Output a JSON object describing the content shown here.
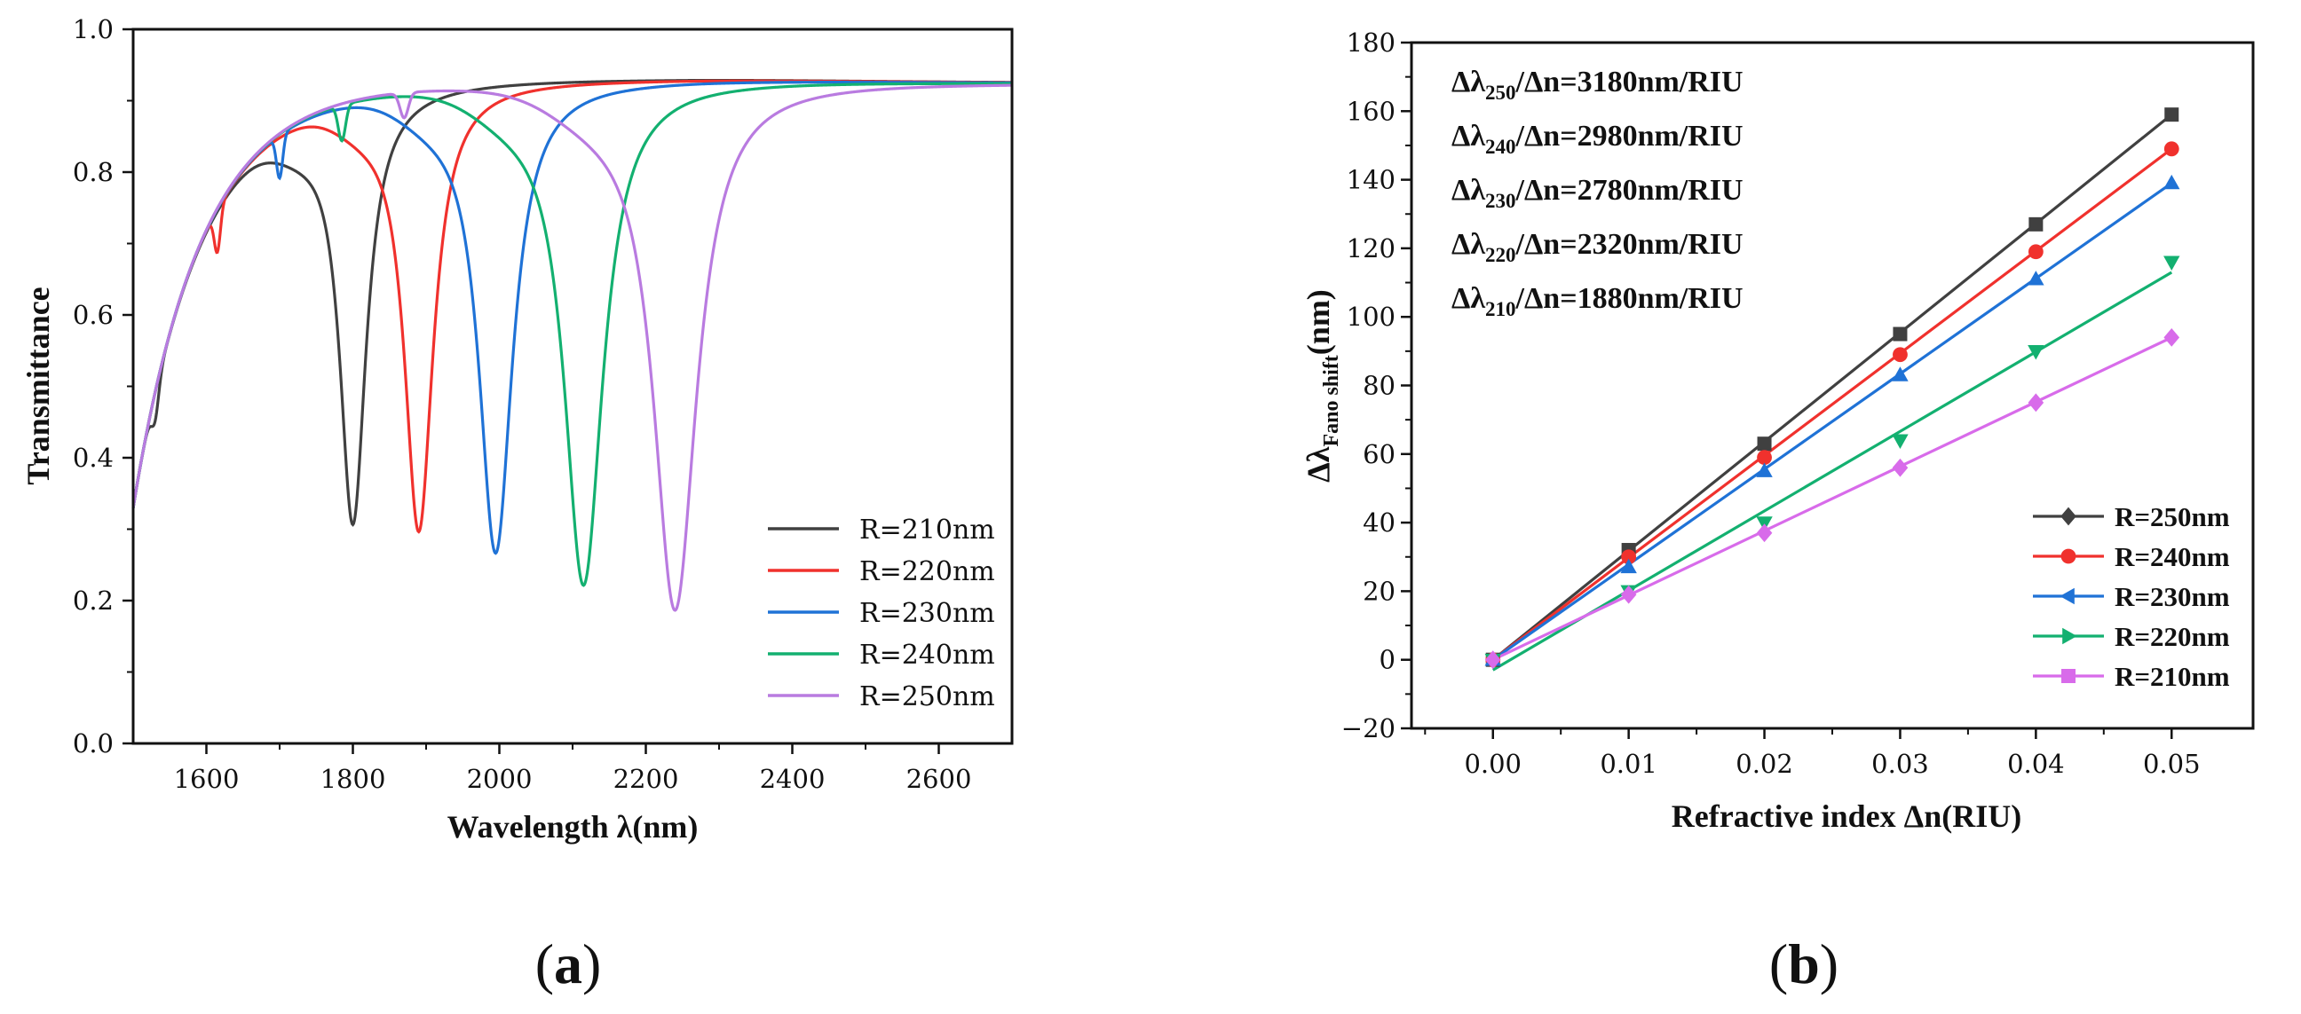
{
  "chart_data": [
    {
      "type": "line",
      "title": "",
      "xlabel": "Wavelength λ(nm)",
      "ylabel": "Transmittance",
      "xlim": [
        1500,
        2700
      ],
      "ylim": [
        0.0,
        1.0
      ],
      "xticks": [
        1600,
        1800,
        2000,
        2200,
        2400,
        2600
      ],
      "xtick_labels": [
        "1600",
        "1800",
        "2000",
        "2200",
        "2400",
        "2600"
      ],
      "yticks": [
        0.0,
        0.2,
        0.4,
        0.6,
        0.8,
        1.0
      ],
      "ytick_labels": [
        "0.0",
        "0.2",
        "0.4",
        "0.6",
        "0.8",
        "1.0"
      ],
      "legend_position": "bottom-right",
      "series": [
        {
          "name": "R=210nm",
          "color": "#404040",
          "baseline": 0.925,
          "resonances": [
            {
              "center": 1800,
              "min": 0.31,
              "width": 22
            }
          ],
          "dips": [
            {
              "center": 1530,
              "depth": 0.04,
              "width": 7
            }
          ]
        },
        {
          "name": "R=220nm",
          "color": "#f0312d",
          "baseline": 0.925,
          "resonances": [
            {
              "center": 1890,
              "min": 0.3,
              "width": 24
            }
          ],
          "dips": [
            {
              "center": 1615,
              "depth": 0.06,
              "width": 6
            }
          ]
        },
        {
          "name": "R=230nm",
          "color": "#1f72d6",
          "baseline": 0.925,
          "resonances": [
            {
              "center": 1995,
              "min": 0.27,
              "width": 28
            }
          ],
          "dips": [
            {
              "center": 1700,
              "depth": 0.06,
              "width": 6
            }
          ]
        },
        {
          "name": "R=240nm",
          "color": "#13b070",
          "baseline": 0.925,
          "resonances": [
            {
              "center": 2115,
              "min": 0.225,
              "width": 32
            }
          ],
          "dips": [
            {
              "center": 1785,
              "depth": 0.05,
              "width": 7
            }
          ]
        },
        {
          "name": "R=250nm",
          "color": "#b97be0",
          "baseline": 0.925,
          "resonances": [
            {
              "center": 2240,
              "min": 0.19,
              "width": 36
            }
          ],
          "dips": [
            {
              "center": 1870,
              "depth": 0.035,
              "width": 8
            }
          ]
        }
      ]
    },
    {
      "type": "line",
      "title": "",
      "xlabel": "Refractive index Δn(RIU)",
      "ylabel_main": "Δλ",
      "ylabel_sub": "Fano shift",
      "ylabel_unit": "(nm)",
      "xlim": [
        -0.006,
        0.056
      ],
      "ylim": [
        -20,
        180
      ],
      "xticks": [
        0.0,
        0.01,
        0.02,
        0.03,
        0.04,
        0.05
      ],
      "xtick_labels": [
        "0.00",
        "0.01",
        "0.02",
        "0.03",
        "0.04",
        "0.05"
      ],
      "yticks": [
        -20,
        0,
        20,
        40,
        60,
        80,
        100,
        120,
        140,
        160,
        180
      ],
      "ytick_labels": [
        "−20",
        "0",
        "20",
        "40",
        "60",
        "80",
        "100",
        "120",
        "140",
        "160",
        "180"
      ],
      "legend_position": "bottom-right",
      "x": [
        0.0,
        0.01,
        0.02,
        0.03,
        0.04,
        0.05
      ],
      "series": [
        {
          "name": "R=250nm",
          "color": "#404040",
          "marker": "square",
          "legend_marker": "diamond",
          "values": [
            0,
            32,
            63,
            95,
            127,
            159
          ],
          "fit": [
            0,
            159
          ]
        },
        {
          "name": "R=240nm",
          "color": "#f0312d",
          "marker": "circle",
          "legend_marker": "circle",
          "values": [
            0,
            30,
            59,
            89,
            119,
            149
          ],
          "fit": [
            0,
            149
          ]
        },
        {
          "name": "R=230nm",
          "color": "#1f72d6",
          "marker": "triangle-up",
          "legend_marker": "triangle-left",
          "values": [
            0,
            27,
            55,
            83,
            111,
            139
          ],
          "fit": [
            0,
            139
          ]
        },
        {
          "name": "R=220nm",
          "color": "#13b070",
          "marker": "triangle-down",
          "legend_marker": "triangle-right",
          "values": [
            0,
            20,
            40,
            64,
            90,
            116
          ],
          "fit": [
            -3,
            113
          ]
        },
        {
          "name": "R=210nm",
          "color": "#d86bea",
          "marker": "diamond",
          "legend_marker": "square",
          "values": [
            0,
            19,
            37,
            56,
            75,
            94
          ],
          "fit": [
            0,
            94
          ]
        }
      ],
      "annotations": [
        {
          "pre": "Δλ",
          "sub": "250",
          "post": "/Δn=3180nm/RIU"
        },
        {
          "pre": "Δλ",
          "sub": "240",
          "post": "/Δn=2980nm/RIU"
        },
        {
          "pre": "Δλ",
          "sub": "230",
          "post": "/Δn=2780nm/RIU"
        },
        {
          "pre": "Δλ",
          "sub": "220",
          "post": "/Δn=2320nm/RIU"
        },
        {
          "pre": "Δλ",
          "sub": "210",
          "post": "/Δn=1880nm/RIU"
        }
      ]
    }
  ],
  "panels": {
    "a": {
      "open": "(",
      "letter": "a",
      "close": ")"
    },
    "b": {
      "open": "(",
      "letter": "b",
      "close": ")"
    }
  }
}
